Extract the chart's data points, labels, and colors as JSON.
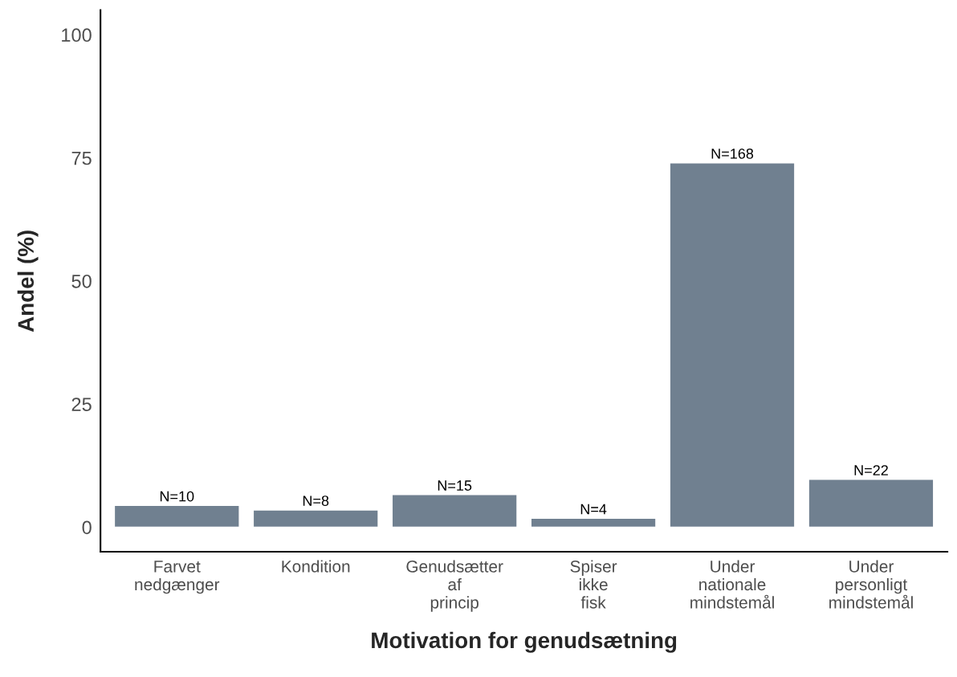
{
  "chart_data": {
    "type": "bar",
    "xlabel": "Motivation for genudsætning",
    "ylabel": "Andel (%)",
    "categories": [
      "Farvet\nnedgænger",
      "Kondition",
      "Genudsætter\naf\nprincip",
      "Spiser\nikke\nfisk",
      "Under\nnationale\nmindstemål",
      "Under\npersonligt\nmindstemål"
    ],
    "values": [
      4.4,
      3.5,
      6.6,
      1.8,
      74.0,
      9.7
    ],
    "annotations": [
      {
        "text": "N=10",
        "x": "Farvet\nnedgænger",
        "y": 4.4
      },
      {
        "text": "N=8",
        "x": "Kondition",
        "y": 3.5
      },
      {
        "text": "N=15",
        "x": "Genudsætter\naf\nprincip",
        "y": 6.6
      },
      {
        "text": "N=4",
        "x": "Spiser\nikke\nfisk",
        "y": 1.8
      },
      {
        "text": "N=168",
        "x": "Under\nnationale\nmindstemål",
        "y": 74.0
      },
      {
        "text": "N=22",
        "x": "Under\npersonligt\nmindstemål",
        "y": 9.7
      }
    ],
    "color": "#708090",
    "ylim": [
      -5,
      105
    ],
    "yticks": [
      0,
      25,
      50,
      75,
      100
    ],
    "grid": false
  }
}
